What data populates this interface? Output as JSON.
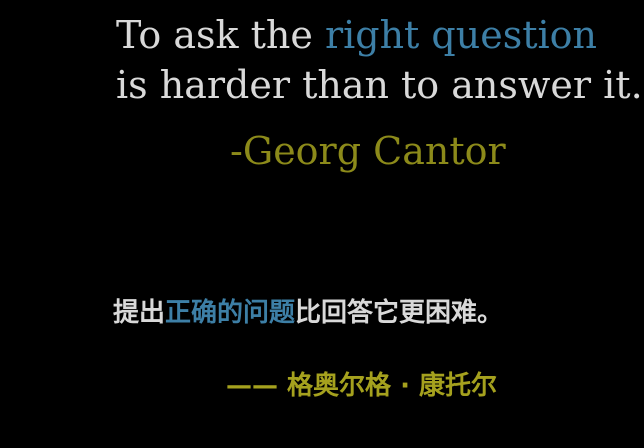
{
  "colors": {
    "text": "#d9d9d9",
    "highlight": "#3d7fa6",
    "author": "#8c8a1a",
    "author_zh": "#a5a11e",
    "background": "#000000"
  },
  "english": {
    "line1_a": "To ask the ",
    "line1_b": "right question",
    "line2": "is harder than to answer it.",
    "author": "-Georg Cantor"
  },
  "chinese": {
    "part_a": "提出",
    "part_b": "正确的问题",
    "part_c": "比回答它更困难。",
    "author": "—— 格奥尔格 · 康托尔"
  }
}
